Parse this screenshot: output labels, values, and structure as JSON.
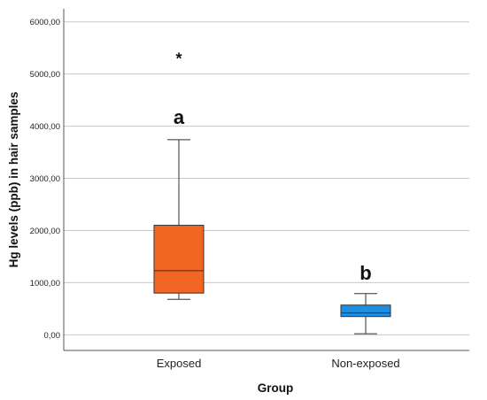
{
  "chart_data": {
    "type": "boxplot",
    "xlabel": "Group",
    "ylabel": "Hg levels (ppb) in hair samples",
    "ylim": [
      -300,
      6250
    ],
    "yticks": [
      0,
      1000,
      2000,
      3000,
      4000,
      5000,
      6000
    ],
    "ytick_labels": [
      "0,00",
      "1000,00",
      "2000,00",
      "3000,00",
      "4000,00",
      "5000,00",
      "6000,00"
    ],
    "grid": "horizontal",
    "categories": [
      "Exposed",
      "Non-exposed"
    ],
    "boxes": [
      {
        "category": "Exposed",
        "min": 680,
        "q1": 800,
        "median": 1230,
        "q3": 2100,
        "max": 3740,
        "outliers": [
          5380
        ],
        "outlier_marker": "*",
        "letter": "a",
        "color": "#f26522"
      },
      {
        "category": "Non-exposed",
        "min": 20,
        "q1": 350,
        "median": 420,
        "q3": 570,
        "max": 790,
        "outliers": [],
        "outlier_marker": "*",
        "letter": "b",
        "color": "#1e8ee0"
      }
    ],
    "colors": {
      "grid": "#c8c8c8",
      "axis": "#555555",
      "edge": "#333333"
    }
  }
}
